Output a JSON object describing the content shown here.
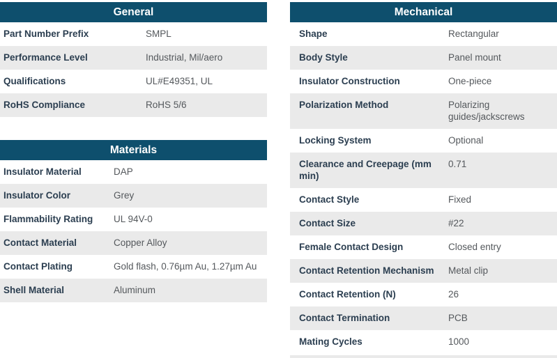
{
  "colors": {
    "header_bg": "#0e4f6d",
    "header_text": "#ffffff",
    "label_text": "#2b3e50",
    "value_text": "#54585c",
    "row_bg": "#ffffff",
    "row_alt_bg": "#eaeaea"
  },
  "tables": [
    {
      "id": "general",
      "title": "General",
      "rows": [
        {
          "label": "Part Number Prefix",
          "value": "SMPL"
        },
        {
          "label": "Performance Level",
          "value": "Industrial, Mil/aero"
        },
        {
          "label": "Qualifications",
          "value": "UL#E49351, UL"
        },
        {
          "label": "RoHS Compliance",
          "value": "RoHS 5/6"
        }
      ]
    },
    {
      "id": "materials",
      "title": "Materials",
      "rows": [
        {
          "label": "Insulator Material",
          "value": "DAP"
        },
        {
          "label": "Insulator Color",
          "value": "Grey"
        },
        {
          "label": "Flammability Rating",
          "value": "UL 94V-0"
        },
        {
          "label": "Contact Material",
          "value": "Copper Alloy"
        },
        {
          "label": "Contact Plating",
          "value": "Gold flash, 0.76µm Au, 1.27µm Au"
        },
        {
          "label": "Shell Material",
          "value": "Aluminum"
        }
      ]
    },
    {
      "id": "mechanical",
      "title": "Mechanical",
      "rows": [
        {
          "label": "Shape",
          "value": "Rectangular"
        },
        {
          "label": "Body Style",
          "value": "Panel mount"
        },
        {
          "label": "Insulator Construction",
          "value": "One-piece"
        },
        {
          "label": "Polarization Method",
          "value": "Polarizing guides/jackscrews"
        },
        {
          "label": "Locking System",
          "value": "Optional"
        },
        {
          "label": "Clearance and Creepage (mm min)",
          "value": "0.71"
        },
        {
          "label": "Contact Style",
          "value": "Fixed"
        },
        {
          "label": "Contact Size",
          "value": "#22"
        },
        {
          "label": "Female Contact Design",
          "value": "Closed entry"
        },
        {
          "label": "Contact Retention Mechanism",
          "value": "Metal clip"
        },
        {
          "label": "Contact Retention (N)",
          "value": "26"
        },
        {
          "label": "Contact Termination",
          "value": "PCB"
        },
        {
          "label": "Mating Cycles",
          "value": "1000"
        }
      ]
    }
  ]
}
